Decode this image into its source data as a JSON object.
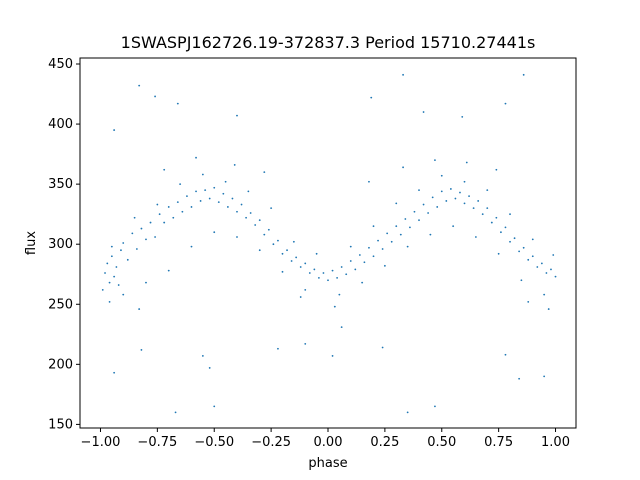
{
  "chart_data": {
    "type": "scatter",
    "title": "1SWASPJ162726.19-372837.3 Period 15710.27441s",
    "xlabel": "phase",
    "ylabel": "flux",
    "xlim": [
      -1.09,
      1.09
    ],
    "ylim": [
      147,
      455
    ],
    "x_ticks": [
      -1.0,
      -0.75,
      -0.5,
      -0.25,
      0.0,
      0.25,
      0.5,
      0.75,
      1.0
    ],
    "x_tick_labels": [
      "−1.00",
      "−0.75",
      "−0.50",
      "−0.25",
      "0.00",
      "0.25",
      "0.50",
      "0.75",
      "1.00"
    ],
    "y_ticks": [
      150,
      200,
      250,
      300,
      350,
      400,
      450
    ],
    "y_tick_labels": [
      "150",
      "200",
      "250",
      "300",
      "350",
      "400",
      "450"
    ],
    "grid": false,
    "marker_color": "#1f77b4",
    "series": [
      {
        "points": [
          [
            -0.98,
            276
          ],
          [
            -0.97,
            284
          ],
          [
            -0.96,
            268
          ],
          [
            -0.95,
            290
          ],
          [
            -0.94,
            273
          ],
          [
            -0.93,
            281
          ],
          [
            -0.92,
            266
          ],
          [
            -0.91,
            295
          ],
          [
            -0.9,
            301
          ],
          [
            -0.88,
            287
          ],
          [
            -0.86,
            309
          ],
          [
            -0.84,
            296
          ],
          [
            -0.82,
            313
          ],
          [
            -0.8,
            304
          ],
          [
            -0.78,
            318
          ],
          [
            -0.76,
            306
          ],
          [
            -0.74,
            325
          ],
          [
            -0.72,
            318
          ],
          [
            -0.7,
            331
          ],
          [
            -0.68,
            322
          ],
          [
            -0.66,
            335
          ],
          [
            -0.64,
            327
          ],
          [
            -0.62,
            340
          ],
          [
            -0.6,
            331
          ],
          [
            -0.58,
            344
          ],
          [
            -0.56,
            336
          ],
          [
            -0.54,
            345
          ],
          [
            -0.52,
            338
          ],
          [
            -0.5,
            347
          ],
          [
            -0.48,
            335
          ],
          [
            -0.46,
            342
          ],
          [
            -0.44,
            331
          ],
          [
            -0.42,
            338
          ],
          [
            -0.4,
            327
          ],
          [
            -0.38,
            333
          ],
          [
            -0.36,
            322
          ],
          [
            -0.34,
            326
          ],
          [
            -0.32,
            316
          ],
          [
            -0.3,
            320
          ],
          [
            -0.28,
            308
          ],
          [
            -0.26,
            312
          ],
          [
            -0.24,
            300
          ],
          [
            -0.22,
            303
          ],
          [
            -0.2,
            292
          ],
          [
            -0.18,
            295
          ],
          [
            -0.16,
            286
          ],
          [
            -0.14,
            289
          ],
          [
            -0.12,
            281
          ],
          [
            -0.1,
            284
          ],
          [
            -0.08,
            276
          ],
          [
            -0.06,
            279
          ],
          [
            -0.04,
            272
          ],
          [
            -0.02,
            276
          ],
          [
            0.0,
            270
          ],
          [
            0.02,
            278
          ],
          [
            0.04,
            272
          ],
          [
            0.06,
            281
          ],
          [
            0.08,
            275
          ],
          [
            0.1,
            286
          ],
          [
            0.12,
            279
          ],
          [
            0.14,
            291
          ],
          [
            0.16,
            285
          ],
          [
            0.18,
            297
          ],
          [
            0.2,
            290
          ],
          [
            0.22,
            303
          ],
          [
            0.24,
            296
          ],
          [
            0.26,
            309
          ],
          [
            0.28,
            302
          ],
          [
            0.3,
            315
          ],
          [
            0.32,
            308
          ],
          [
            0.34,
            321
          ],
          [
            0.36,
            314
          ],
          [
            0.38,
            327
          ],
          [
            0.4,
            320
          ],
          [
            0.42,
            333
          ],
          [
            0.44,
            326
          ],
          [
            0.46,
            339
          ],
          [
            0.48,
            331
          ],
          [
            0.5,
            344
          ],
          [
            0.52,
            336
          ],
          [
            0.54,
            346
          ],
          [
            0.56,
            338
          ],
          [
            0.58,
            343
          ],
          [
            0.6,
            334
          ],
          [
            0.62,
            340
          ],
          [
            0.64,
            330
          ],
          [
            0.66,
            336
          ],
          [
            0.68,
            325
          ],
          [
            0.7,
            330
          ],
          [
            0.72,
            318
          ],
          [
            0.74,
            322
          ],
          [
            0.76,
            310
          ],
          [
            0.78,
            314
          ],
          [
            0.8,
            302
          ],
          [
            0.82,
            305
          ],
          [
            0.84,
            294
          ],
          [
            0.86,
            297
          ],
          [
            0.88,
            287
          ],
          [
            0.9,
            290
          ],
          [
            0.92,
            281
          ],
          [
            0.94,
            284
          ],
          [
            0.96,
            276
          ],
          [
            0.98,
            279
          ],
          [
            1.0,
            273
          ],
          [
            -0.99,
            262
          ],
          [
            -0.95,
            298
          ],
          [
            -0.9,
            258
          ],
          [
            -0.85,
            322
          ],
          [
            -0.8,
            268
          ],
          [
            -0.75,
            333
          ],
          [
            -0.7,
            278
          ],
          [
            -0.65,
            350
          ],
          [
            -0.6,
            298
          ],
          [
            -0.55,
            358
          ],
          [
            -0.5,
            310
          ],
          [
            -0.45,
            352
          ],
          [
            -0.4,
            306
          ],
          [
            -0.35,
            344
          ],
          [
            -0.3,
            295
          ],
          [
            -0.25,
            330
          ],
          [
            -0.2,
            277
          ],
          [
            -0.15,
            302
          ],
          [
            -0.1,
            262
          ],
          [
            -0.05,
            292
          ],
          [
            0.05,
            258
          ],
          [
            0.1,
            298
          ],
          [
            0.15,
            268
          ],
          [
            0.2,
            315
          ],
          [
            0.25,
            282
          ],
          [
            0.3,
            334
          ],
          [
            0.35,
            298
          ],
          [
            0.4,
            345
          ],
          [
            0.45,
            308
          ],
          [
            0.5,
            357
          ],
          [
            0.55,
            315
          ],
          [
            0.6,
            352
          ],
          [
            0.65,
            306
          ],
          [
            0.7,
            345
          ],
          [
            0.75,
            292
          ],
          [
            0.8,
            325
          ],
          [
            0.85,
            270
          ],
          [
            0.9,
            304
          ],
          [
            0.95,
            258
          ],
          [
            0.99,
            291
          ],
          [
            -0.96,
            252
          ],
          [
            -0.83,
            246
          ],
          [
            -0.72,
            362
          ],
          [
            -0.58,
            372
          ],
          [
            -0.41,
            366
          ],
          [
            -0.28,
            360
          ],
          [
            -0.12,
            256
          ],
          [
            0.03,
            248
          ],
          [
            0.18,
            352
          ],
          [
            0.33,
            364
          ],
          [
            0.47,
            370
          ],
          [
            0.61,
            368
          ],
          [
            0.74,
            362
          ],
          [
            0.88,
            252
          ],
          [
            0.97,
            246
          ],
          [
            -0.94,
            395
          ],
          [
            -0.83,
            432
          ],
          [
            -0.76,
            423
          ],
          [
            -0.66,
            417
          ],
          [
            -0.4,
            407
          ],
          [
            -0.1,
            217
          ],
          [
            0.02,
            207
          ],
          [
            0.19,
            422
          ],
          [
            0.33,
            441
          ],
          [
            0.42,
            410
          ],
          [
            0.59,
            406
          ],
          [
            0.78,
            417
          ],
          [
            0.86,
            441
          ],
          [
            -0.94,
            193
          ],
          [
            -0.82,
            212
          ],
          [
            -0.67,
            160
          ],
          [
            -0.55,
            207
          ],
          [
            -0.52,
            197
          ],
          [
            -0.5,
            165
          ],
          [
            -0.22,
            213
          ],
          [
            0.06,
            231
          ],
          [
            0.24,
            214
          ],
          [
            0.35,
            160
          ],
          [
            0.47,
            165
          ],
          [
            0.78,
            208
          ],
          [
            0.84,
            188
          ],
          [
            0.95,
            190
          ]
        ]
      }
    ]
  }
}
